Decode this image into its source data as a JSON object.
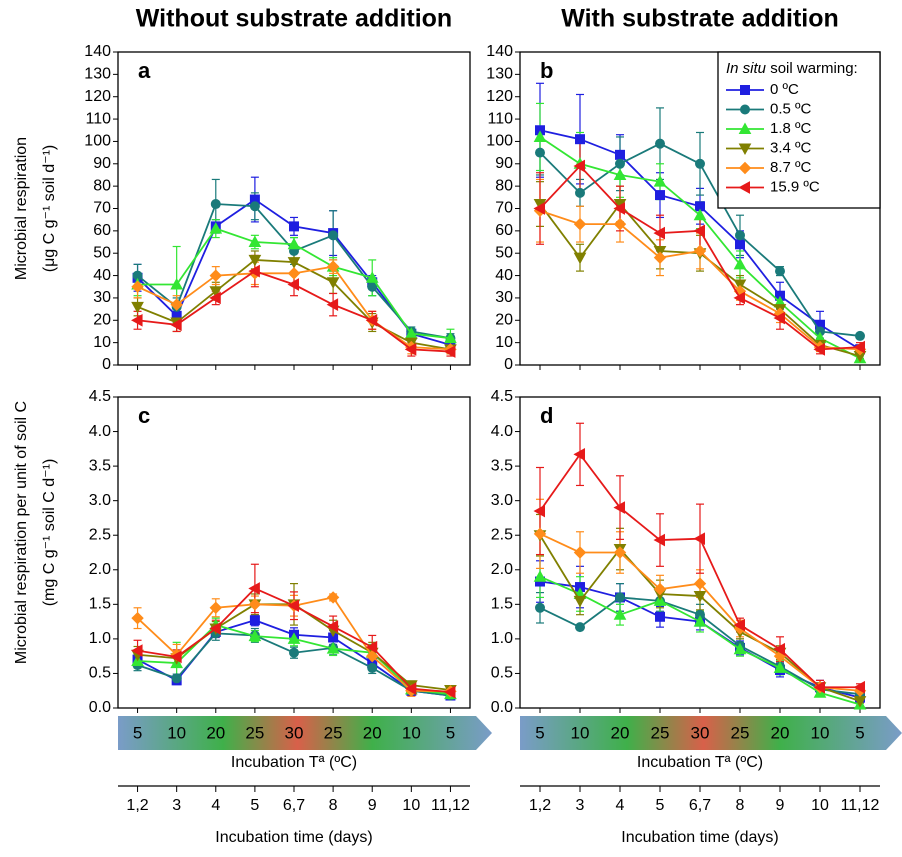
{
  "chart_data": [
    {
      "type": "line",
      "label": "a",
      "title": "Without substrate addition",
      "ylabel": [
        "Microbial respiration",
        "(μg C g⁻¹ soil d⁻¹)"
      ],
      "categories": [
        "1,2",
        "3",
        "4",
        "5",
        "6,7",
        "8",
        "9",
        "10",
        "11,12"
      ],
      "ylim": [
        0,
        140
      ],
      "yticks": [
        0,
        10,
        20,
        30,
        40,
        50,
        60,
        70,
        80,
        90,
        100,
        110,
        120,
        130,
        140
      ],
      "series": [
        {
          "name": "0 ºC",
          "color": "#1f1fe0",
          "marker": "square",
          "values": [
            39,
            22,
            62,
            74,
            62,
            59,
            37,
            14,
            9
          ],
          "errors": [
            6,
            3,
            3,
            10,
            4,
            10,
            3,
            2,
            2
          ]
        },
        {
          "name": "0.5 ºC",
          "color": "#1a7a7a",
          "marker": "circle",
          "values": [
            40,
            26,
            72,
            71,
            51,
            58,
            35,
            15,
            12
          ],
          "errors": [
            5,
            4,
            11,
            6,
            6,
            11,
            4,
            2,
            2
          ]
        },
        {
          "name": "1.8 ºC",
          "color": "#33e633",
          "marker": "triangle-up",
          "values": [
            36,
            36,
            61,
            55,
            54,
            44,
            39,
            14,
            12
          ],
          "errors": [
            5,
            17,
            4,
            3,
            3,
            4,
            8,
            2,
            4
          ]
        },
        {
          "name": "3.4 ºC",
          "color": "#808000",
          "marker": "triangle-down",
          "values": [
            26,
            19,
            33,
            47,
            46,
            37,
            19,
            10,
            7
          ],
          "errors": [
            4,
            4,
            4,
            4,
            5,
            5,
            4,
            2,
            2
          ]
        },
        {
          "name": "8.7 ºC",
          "color": "#ff8c1a",
          "marker": "diamond",
          "values": [
            35,
            27,
            40,
            41,
            41,
            44,
            20,
            8,
            7
          ],
          "errors": [
            5,
            4,
            4,
            5,
            5,
            3,
            4,
            3,
            2
          ]
        },
        {
          "name": "15.9 ºC",
          "color": "#e61a1a",
          "marker": "triangle-left",
          "values": [
            20,
            18,
            30,
            42,
            36,
            27,
            20,
            7,
            6
          ],
          "errors": [
            4,
            3,
            3,
            7,
            5,
            5,
            4,
            3,
            2
          ]
        }
      ]
    },
    {
      "type": "line",
      "label": "b",
      "title": "With substrate addition",
      "legend_title": [
        "In situ",
        "soil warming:"
      ],
      "legend": "upper right",
      "categories": [
        "1,2",
        "3",
        "4",
        "5",
        "6,7",
        "8",
        "9",
        "10",
        "11,12"
      ],
      "ylim": [
        0,
        140
      ],
      "yticks": [
        0,
        10,
        20,
        30,
        40,
        50,
        60,
        70,
        80,
        90,
        100,
        110,
        120,
        130,
        140
      ],
      "series": [
        {
          "name": "0 ºC",
          "color": "#1f1fe0",
          "marker": "square",
          "values": [
            105,
            101,
            94,
            76,
            71,
            54,
            31,
            18,
            7
          ],
          "errors": [
            21,
            20,
            9,
            10,
            8,
            6,
            6,
            6,
            2
          ]
        },
        {
          "name": "0.5 ºC",
          "color": "#1a7a7a",
          "marker": "circle",
          "values": [
            95,
            77,
            90,
            99,
            90,
            58,
            42,
            15,
            13
          ],
          "errors": [
            10,
            6,
            12,
            16,
            14,
            9,
            2,
            3,
            1
          ]
        },
        {
          "name": "1.8 ºC",
          "color": "#33e633",
          "marker": "triangle-up",
          "values": [
            102,
            90,
            85,
            82,
            67,
            45,
            28,
            12,
            3
          ],
          "errors": [
            15,
            14,
            10,
            8,
            6,
            6,
            4,
            2,
            1
          ]
        },
        {
          "name": "3.4 ºC",
          "color": "#808000",
          "marker": "triangle-down",
          "values": [
            72,
            48,
            72,
            51,
            50,
            36,
            25,
            9,
            4
          ],
          "errors": [
            10,
            6,
            8,
            8,
            8,
            4,
            4,
            2,
            1
          ]
        },
        {
          "name": "8.7 ºC",
          "color": "#ff8c1a",
          "marker": "diamond",
          "values": [
            69,
            63,
            63,
            48,
            51,
            33,
            23,
            8,
            7
          ],
          "errors": [
            14,
            8,
            8,
            8,
            8,
            4,
            4,
            2,
            2
          ]
        },
        {
          "name": "15.9 ºC",
          "color": "#e61a1a",
          "marker": "triangle-left",
          "values": [
            70,
            89,
            70,
            59,
            60,
            30,
            21,
            7,
            8
          ],
          "errors": [
            16,
            12,
            10,
            8,
            10,
            3,
            5,
            2,
            2
          ]
        }
      ]
    },
    {
      "type": "line",
      "label": "c",
      "ylabel": [
        "Microbial respiration per unit of soil C",
        "(mg C g⁻¹ soil C d⁻¹)"
      ],
      "categories": [
        "1,2",
        "3",
        "4",
        "5",
        "6,7",
        "8",
        "9",
        "10",
        "11,12"
      ],
      "temperature_label": "Incubation Tª (ºC)",
      "temperatures": [
        5,
        10,
        20,
        25,
        30,
        25,
        20,
        10,
        5
      ],
      "xlabel": "Incubation time (days)",
      "ylim": [
        0,
        4.5
      ],
      "yticks": [
        {
          "value": 0,
          "label": "0.0"
        },
        0.5,
        {
          "value": 1,
          "label": "1.0"
        },
        1.5,
        {
          "value": 2,
          "label": "2.0"
        },
        2.5,
        {
          "value": 3,
          "label": "3.0"
        },
        3.5,
        {
          "value": 4,
          "label": "4.0"
        },
        4.5
      ],
      "series": [
        {
          "name": "0 ºC",
          "color": "#1f1fe0",
          "marker": "square",
          "values": [
            0.7,
            0.4,
            1.1,
            1.27,
            1.06,
            1.02,
            0.65,
            0.25,
            0.18
          ],
          "errors": [
            0.1,
            0.06,
            0.08,
            0.08,
            0.1,
            0.1,
            0.1,
            0.05,
            0.04
          ]
        },
        {
          "name": "0.5 ºC",
          "color": "#1a7a7a",
          "marker": "circle",
          "values": [
            0.62,
            0.43,
            1.08,
            1.05,
            0.8,
            0.87,
            0.58,
            0.25,
            0.18
          ],
          "errors": [
            0.08,
            0.06,
            0.1,
            0.1,
            0.08,
            0.1,
            0.08,
            0.05,
            0.04
          ]
        },
        {
          "name": "1.8 ºC",
          "color": "#33e633",
          "marker": "triangle-up",
          "values": [
            0.68,
            0.65,
            1.2,
            1.04,
            1.0,
            0.86,
            0.8,
            0.27,
            0.2
          ],
          "errors": [
            0.1,
            0.3,
            0.1,
            0.08,
            0.1,
            0.1,
            0.12,
            0.05,
            0.05
          ]
        },
        {
          "name": "3.4 ºC",
          "color": "#808000",
          "marker": "triangle-down",
          "values": [
            0.77,
            0.72,
            1.15,
            1.5,
            1.5,
            1.12,
            0.8,
            0.33,
            0.26
          ],
          "errors": [
            0.12,
            0.12,
            0.1,
            0.15,
            0.3,
            0.15,
            0.15,
            0.06,
            0.05
          ]
        },
        {
          "name": "8.7 ºC",
          "color": "#ff8c1a",
          "marker": "diamond",
          "values": [
            1.3,
            0.77,
            1.45,
            1.5,
            1.48,
            1.6,
            0.75,
            0.25,
            0.24
          ],
          "errors": [
            0.15,
            0.15,
            0.13,
            0.12,
            0.15,
            0.05,
            0.15,
            0.08,
            0.05
          ]
        },
        {
          "name": "15.9 ºC",
          "color": "#e61a1a",
          "marker": "triangle-left",
          "values": [
            0.83,
            0.74,
            1.15,
            1.73,
            1.48,
            1.18,
            0.88,
            0.28,
            0.23
          ],
          "errors": [
            0.15,
            0.1,
            0.12,
            0.35,
            0.2,
            0.15,
            0.17,
            0.1,
            0.05
          ]
        }
      ]
    },
    {
      "type": "line",
      "label": "d",
      "categories": [
        "1,2",
        "3",
        "4",
        "5",
        "6,7",
        "8",
        "9",
        "10",
        "11,12"
      ],
      "temperature_label": "Incubation Tª (ºC)",
      "temperatures": [
        5,
        10,
        20,
        25,
        30,
        25,
        20,
        10,
        5
      ],
      "xlabel": "Incubation time (days)",
      "ylim": [
        0,
        4.5
      ],
      "yticks": [
        {
          "value": 0,
          "label": "0.0"
        },
        0.5,
        {
          "value": 1,
          "label": "1.0"
        },
        1.5,
        {
          "value": 2,
          "label": "2.0"
        },
        2.5,
        {
          "value": 3,
          "label": "3.0"
        },
        3.5,
        {
          "value": 4,
          "label": "4.0"
        },
        4.5
      ],
      "series": [
        {
          "name": "0 ºC",
          "color": "#1f1fe0",
          "marker": "square",
          "values": [
            1.83,
            1.75,
            1.6,
            1.32,
            1.25,
            0.87,
            0.55,
            0.3,
            0.15
          ],
          "errors": [
            0.3,
            0.3,
            0.2,
            0.15,
            0.12,
            0.1,
            0.1,
            0.1,
            0.05
          ]
        },
        {
          "name": "0.5 ºC",
          "color": "#1a7a7a",
          "marker": "circle",
          "values": [
            1.45,
            1.17,
            1.6,
            1.55,
            1.35,
            0.9,
            0.6,
            0.27,
            0.2
          ],
          "errors": [
            0.22,
            0.03,
            0.2,
            0.15,
            0.15,
            0.1,
            0.08,
            0.05,
            0.03
          ]
        },
        {
          "name": "1.8 ºC",
          "color": "#33e633",
          "marker": "triangle-up",
          "values": [
            1.9,
            1.65,
            1.35,
            1.55,
            1.25,
            0.85,
            0.58,
            0.22,
            0.05
          ],
          "errors": [
            0.3,
            0.25,
            0.15,
            0.2,
            0.15,
            0.1,
            0.1,
            0.05,
            0.03
          ]
        },
        {
          "name": "3.4 ºC",
          "color": "#808000",
          "marker": "triangle-down",
          "values": [
            2.5,
            1.55,
            2.3,
            1.65,
            1.62,
            1.1,
            0.8,
            0.3,
            0.1
          ],
          "errors": [
            0.3,
            0.2,
            0.3,
            0.2,
            0.2,
            0.1,
            0.1,
            0.05,
            0.03
          ]
        },
        {
          "name": "8.7 ºC",
          "color": "#ff8c1a",
          "marker": "diamond",
          "values": [
            2.52,
            2.25,
            2.25,
            1.72,
            1.8,
            1.15,
            0.75,
            0.3,
            0.25
          ],
          "errors": [
            0.5,
            0.3,
            0.3,
            0.2,
            0.2,
            0.12,
            0.12,
            0.05,
            0.05
          ]
        },
        {
          "name": "15.9 ºC",
          "color": "#e61a1a",
          "marker": "triangle-left",
          "values": [
            2.85,
            3.67,
            2.9,
            2.43,
            2.45,
            1.2,
            0.85,
            0.3,
            0.3
          ],
          "errors": [
            0.63,
            0.45,
            0.46,
            0.38,
            0.5,
            0.1,
            0.18,
            0.1,
            0.05
          ]
        }
      ]
    }
  ]
}
